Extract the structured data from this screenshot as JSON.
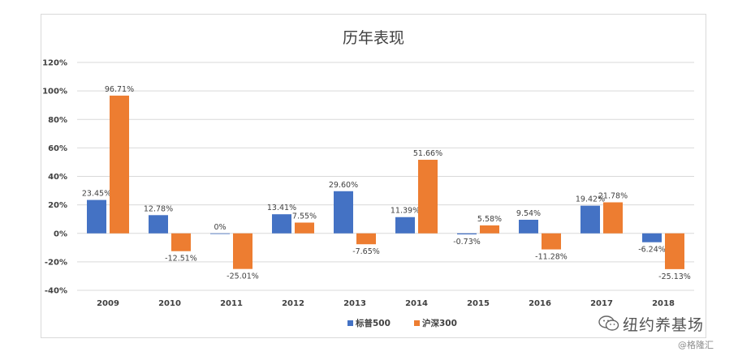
{
  "chart_data": {
    "type": "bar",
    "title": "历年表现",
    "categories": [
      "2009",
      "2010",
      "2011",
      "2012",
      "2013",
      "2014",
      "2015",
      "2016",
      "2017",
      "2018"
    ],
    "series": [
      {
        "name": "标普500",
        "color": "#4472c4",
        "values": [
          23.45,
          12.78,
          0,
          13.41,
          29.6,
          11.39,
          -0.73,
          9.54,
          19.42,
          -6.24
        ],
        "labels": [
          "23.45%",
          "12.78%",
          "0%",
          "13.41%",
          "29.60%",
          "11.39%",
          "-0.73%",
          "9.54%",
          "19.42%",
          "-6.24%"
        ]
      },
      {
        "name": "沪深300",
        "color": "#ed7d31",
        "values": [
          96.71,
          -12.51,
          -25.01,
          7.55,
          -7.65,
          51.66,
          5.58,
          -11.28,
          21.78,
          -25.13
        ],
        "labels": [
          "96.71%",
          "-12.51%",
          "-25.01%",
          "7.55%",
          "-7.65%",
          "51.66%",
          "5.58%",
          "-11.28%",
          "21.78%",
          "-25.13%"
        ]
      }
    ],
    "yticks": [
      "120%",
      "100%",
      "80%",
      "60%",
      "40%",
      "20%",
      "0%",
      "-20%",
      "-40%"
    ],
    "ylim": [
      -40,
      120
    ],
    "grid": true,
    "legend": "bottom"
  },
  "watermark": "纽约养基场",
  "credit": "@格隆汇"
}
